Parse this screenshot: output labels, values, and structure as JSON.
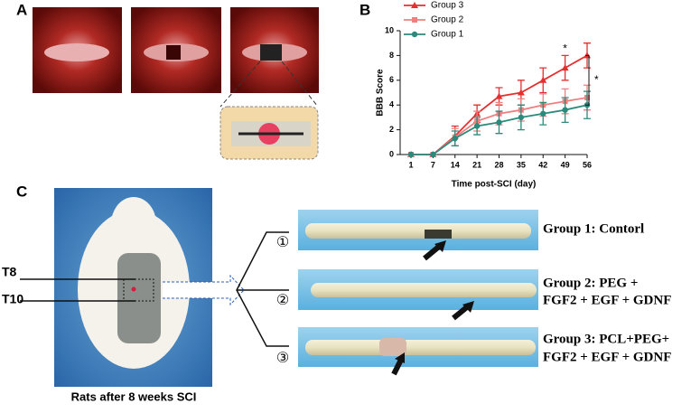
{
  "panel_labels": [
    "A",
    "B",
    "C"
  ],
  "chart_data": {
    "type": "line",
    "x_label": "Time post-SCI (day)",
    "y_label": "BBB Score",
    "categories": [
      "1",
      "7",
      "14",
      "21",
      "28",
      "35",
      "42",
      "49",
      "56"
    ],
    "series": [
      {
        "name": "Group 3",
        "color": "#e3302f",
        "marker": "triangle",
        "values": [
          0,
          0,
          1.5,
          3.3,
          4.7,
          5.0,
          6.0,
          7.0,
          8.0
        ],
        "errors": [
          0,
          0,
          0.8,
          0.7,
          0.7,
          1.0,
          1.0,
          1.0,
          1.0
        ]
      },
      {
        "name": "Group 2",
        "color": "#ee8080",
        "marker": "square",
        "values": [
          0,
          0,
          1.4,
          2.7,
          3.3,
          3.6,
          4.0,
          4.3,
          4.6
        ],
        "errors": [
          0,
          0,
          0.7,
          0.8,
          0.9,
          0.9,
          0.9,
          1.0,
          1.0
        ]
      },
      {
        "name": "Group 1",
        "color": "#2b8a7c",
        "marker": "circle",
        "values": [
          0,
          0,
          1.3,
          2.3,
          2.6,
          3.0,
          3.3,
          3.6,
          4.0
        ],
        "errors": [
          0,
          0,
          0.6,
          0.7,
          0.9,
          1.0,
          0.9,
          1.0,
          1.1
        ]
      }
    ],
    "ylim": [
      0,
      10
    ],
    "yticks": [
      0,
      2,
      4,
      6,
      8,
      10
    ],
    "legend": "upper-left",
    "annotations": [
      "*",
      "*"
    ]
  },
  "panel_c": {
    "caption": "Rats after 8 weeks SCI",
    "levels": [
      "T8",
      "T10"
    ],
    "markers": [
      "①",
      "②",
      "③"
    ],
    "groups": [
      [
        "Group 1: Contorl"
      ],
      [
        "Group 2: PEG +",
        "FGF2 + EGF + GDNF"
      ],
      [
        "Group 3: PCL+PEG+",
        "FGF2 + EGF + GDNF"
      ]
    ]
  }
}
